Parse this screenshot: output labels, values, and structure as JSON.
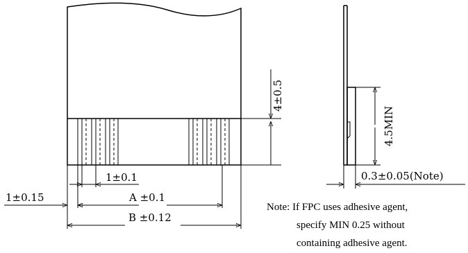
{
  "dimensions": {
    "top_height": "4±0.5",
    "pitch": "1±0.1",
    "offset": "1±0.15",
    "span_a": "A ±0.1",
    "span_b": "B ±0.12",
    "stiffener_length": "4.5MIN",
    "thickness": "0.3±0.05(Note)"
  },
  "note": {
    "line1": "Note: If FPC uses adhesive agent,",
    "line2": "specify MIN 0.25 without",
    "line3": "containing adhesive agent."
  }
}
